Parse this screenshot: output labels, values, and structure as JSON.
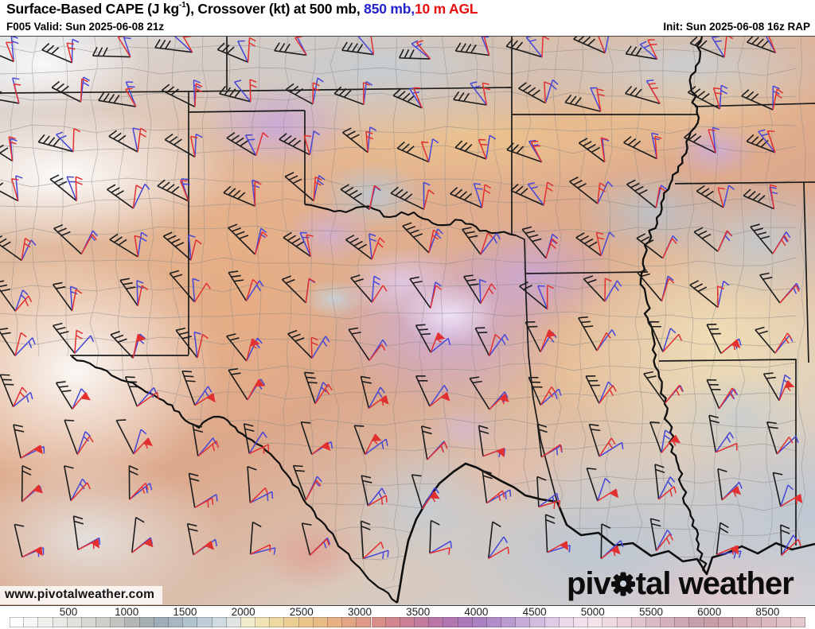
{
  "header": {
    "title_prefix": "Surface-Based CAPE (J kg",
    "title_sup": "-1",
    "title_mid": "), Crossover (kt) at 500 mb, ",
    "title_850": "850 mb,",
    "title_agl": "10 m AGL",
    "valid": "F005 Valid: Sun 2025-06-08 21z",
    "init": "Init: Sun 2025-06-08 16z RAP"
  },
  "watermark": "www.pivotalweather.com",
  "logo": {
    "pre": "piv",
    "post": "tal weather"
  },
  "colors": {
    "title_850_blue": "#2424cc",
    "title_agl_red": "#ea1010",
    "barb_500mb": "#1c1c1c",
    "barb_850mb": "#4646d8",
    "barb_10m": "#e23030",
    "state_border": "#1b1b1b",
    "county_line": "#858585",
    "water_line": "#0e0e0e"
  },
  "legend": {
    "units": "J kg-1",
    "ticks": [
      "500",
      "1000",
      "1500",
      "2000",
      "2500",
      "3000",
      "3500",
      "4000",
      "4500",
      "5000",
      "5500",
      "6000",
      "8500"
    ],
    "cells": [
      "#ffffff",
      "#f7f7f5",
      "#f0f0ed",
      "#e9e9e5",
      "#e1e1dc",
      "#d8d8d3",
      "#cfcfca",
      "#c3c4c0",
      "#b2b6b5",
      "#a6aeb2",
      "#a0aeb9",
      "#a6b6c3",
      "#b1c3cf",
      "#bfcfda",
      "#cfdae1",
      "#e0e4e3",
      "#f2ebc9",
      "#f1e3b3",
      "#efd9a3",
      "#edcf96",
      "#ebc58c",
      "#e9bb85",
      "#e6b083",
      "#e2a584",
      "#dd9a86",
      "#d88f89",
      "#d2868e",
      "#cb7f95",
      "#c37a9f",
      "#ba76a8",
      "#b175b1",
      "#ab79b9",
      "#ab82c1",
      "#b18ec9",
      "#bb9cd2",
      "#c8acda",
      "#d4bce1",
      "#e0cbe7",
      "#ebd8eb",
      "#f2e1ed",
      "#f4e4ec",
      "#efd9e3",
      "#e9cfda",
      "#e2c4d1",
      "#dbbac7",
      "#d4b0bd",
      "#cda7b4",
      "#c79fab",
      "#c89da7",
      "#cba1aa",
      "#d0a8af",
      "#d5b0b7",
      "#dab8be",
      "#dfc0c5",
      "#e4c8cc"
    ]
  }
}
